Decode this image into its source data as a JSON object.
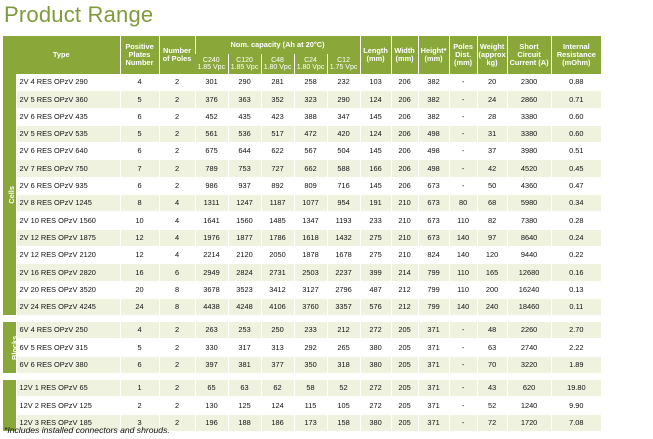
{
  "title": "Product Range",
  "headers": {
    "type": "Type",
    "positive_plates": "Positive Plates Number",
    "poles": "Number of Poles",
    "nom_capacity": "Nom. capacity (Ah at 20°C)",
    "cap_cols": [
      {
        "name": "C240",
        "sub": "1.85 Vpc"
      },
      {
        "name": "C120",
        "sub": "1.85 Vpc"
      },
      {
        "name": "C48",
        "sub": "1.80 Vpc"
      },
      {
        "name": "C24",
        "sub": "1.80 Vpc"
      },
      {
        "name": "C12",
        "sub": "1.75 Vpc"
      }
    ],
    "length": "Length (mm)",
    "width": "Width (mm)",
    "height": "Height* (mm)",
    "poles_dist": "Poles Dist. (mm)",
    "weight": "Weight (approx kg)",
    "short_circuit": "Short Circuit Current (A)",
    "internal_resistance": "Internal Resistance (mOhm)"
  },
  "groups": [
    {
      "label": "Cells",
      "rows": [
        [
          "2V 4 RES OPzV 290",
          "4",
          "2",
          "301",
          "290",
          "281",
          "258",
          "232",
          "103",
          "206",
          "382",
          "-",
          "20",
          "2300",
          "0.88"
        ],
        [
          "2V 5 RES OPzV 360",
          "5",
          "2",
          "376",
          "363",
          "352",
          "323",
          "290",
          "124",
          "206",
          "382",
          "-",
          "24",
          "2860",
          "0.71"
        ],
        [
          "2V 6 RES OPzV 435",
          "6",
          "2",
          "452",
          "435",
          "423",
          "388",
          "347",
          "145",
          "206",
          "382",
          "-",
          "28",
          "3380",
          "0.60"
        ],
        [
          "2V 5 RES OPzV 535",
          "5",
          "2",
          "561",
          "536",
          "517",
          "472",
          "420",
          "124",
          "206",
          "498",
          "-",
          "31",
          "3380",
          "0.60"
        ],
        [
          "2V 6 RES OPzV 640",
          "6",
          "2",
          "675",
          "644",
          "622",
          "567",
          "504",
          "145",
          "206",
          "498",
          "-",
          "37",
          "3980",
          "0.51"
        ],
        [
          "2V 7 RES OPzV 750",
          "7",
          "2",
          "789",
          "753",
          "727",
          "662",
          "588",
          "166",
          "206",
          "498",
          "-",
          "42",
          "4520",
          "0.45"
        ],
        [
          "2V 6 RES OPzV 935",
          "6",
          "2",
          "986",
          "937",
          "892",
          "809",
          "716",
          "145",
          "206",
          "673",
          "-",
          "50",
          "4360",
          "0.47"
        ],
        [
          "2V 8 RES OPzV 1245",
          "8",
          "4",
          "1311",
          "1247",
          "1187",
          "1077",
          "954",
          "191",
          "210",
          "673",
          "80",
          "68",
          "5980",
          "0.34"
        ],
        [
          "2V 10 RES OPzV 1560",
          "10",
          "4",
          "1641",
          "1560",
          "1485",
          "1347",
          "1193",
          "233",
          "210",
          "673",
          "110",
          "82",
          "7380",
          "0.28"
        ],
        [
          "2V 12 RES OPzV 1875",
          "12",
          "4",
          "1976",
          "1877",
          "1786",
          "1618",
          "1432",
          "275",
          "210",
          "673",
          "140",
          "97",
          "8640",
          "0.24"
        ],
        [
          "2V 12 RES OPzV 2120",
          "12",
          "4",
          "2214",
          "2120",
          "2050",
          "1878",
          "1678",
          "275",
          "210",
          "824",
          "140",
          "120",
          "9440",
          "0.22"
        ],
        [
          "2V 16 RES OPzV 2820",
          "16",
          "6",
          "2949",
          "2824",
          "2731",
          "2503",
          "2237",
          "399",
          "214",
          "799",
          "110",
          "165",
          "12680",
          "0.16"
        ],
        [
          "2V 20 RES OPzV 3520",
          "20",
          "8",
          "3678",
          "3523",
          "3412",
          "3127",
          "2796",
          "487",
          "212",
          "799",
          "110",
          "200",
          "16240",
          "0.13"
        ],
        [
          "2V 24 RES OPzV 4245",
          "24",
          "8",
          "4438",
          "4248",
          "4106",
          "3760",
          "3357",
          "576",
          "212",
          "799",
          "140",
          "240",
          "18460",
          "0.11"
        ]
      ]
    },
    {
      "label": "Blocks",
      "rows": [
        [
          "6V 4 RES OPzV 250",
          "4",
          "2",
          "263",
          "253",
          "250",
          "233",
          "212",
          "272",
          "205",
          "371",
          "-",
          "48",
          "2260",
          "2.70"
        ],
        [
          "6V 5 RES OPzV 315",
          "5",
          "2",
          "330",
          "317",
          "313",
          "292",
          "265",
          "380",
          "205",
          "371",
          "-",
          "63",
          "2740",
          "2.22"
        ],
        [
          "6V 6 RES OPzV 380",
          "6",
          "2",
          "397",
          "381",
          "377",
          "350",
          "318",
          "380",
          "205",
          "371",
          "-",
          "70",
          "3220",
          "1.89"
        ]
      ]
    },
    {
      "label": "",
      "rows": [
        [
          "12V 1 RES OPzV 65",
          "1",
          "2",
          "65",
          "63",
          "62",
          "58",
          "52",
          "272",
          "205",
          "371",
          "-",
          "43",
          "620",
          "19.80"
        ],
        [
          "12V 2 RES OPzV 125",
          "2",
          "2",
          "130",
          "125",
          "124",
          "115",
          "105",
          "272",
          "205",
          "371",
          "-",
          "52",
          "1240",
          "9.90"
        ],
        [
          "12V 3 RES OPzV 185",
          "3",
          "2",
          "196",
          "188",
          "186",
          "173",
          "158",
          "380",
          "205",
          "371",
          "-",
          "72",
          "1720",
          "7.08"
        ]
      ]
    }
  ],
  "footnote": "*Includes installed connectors and shrouds."
}
